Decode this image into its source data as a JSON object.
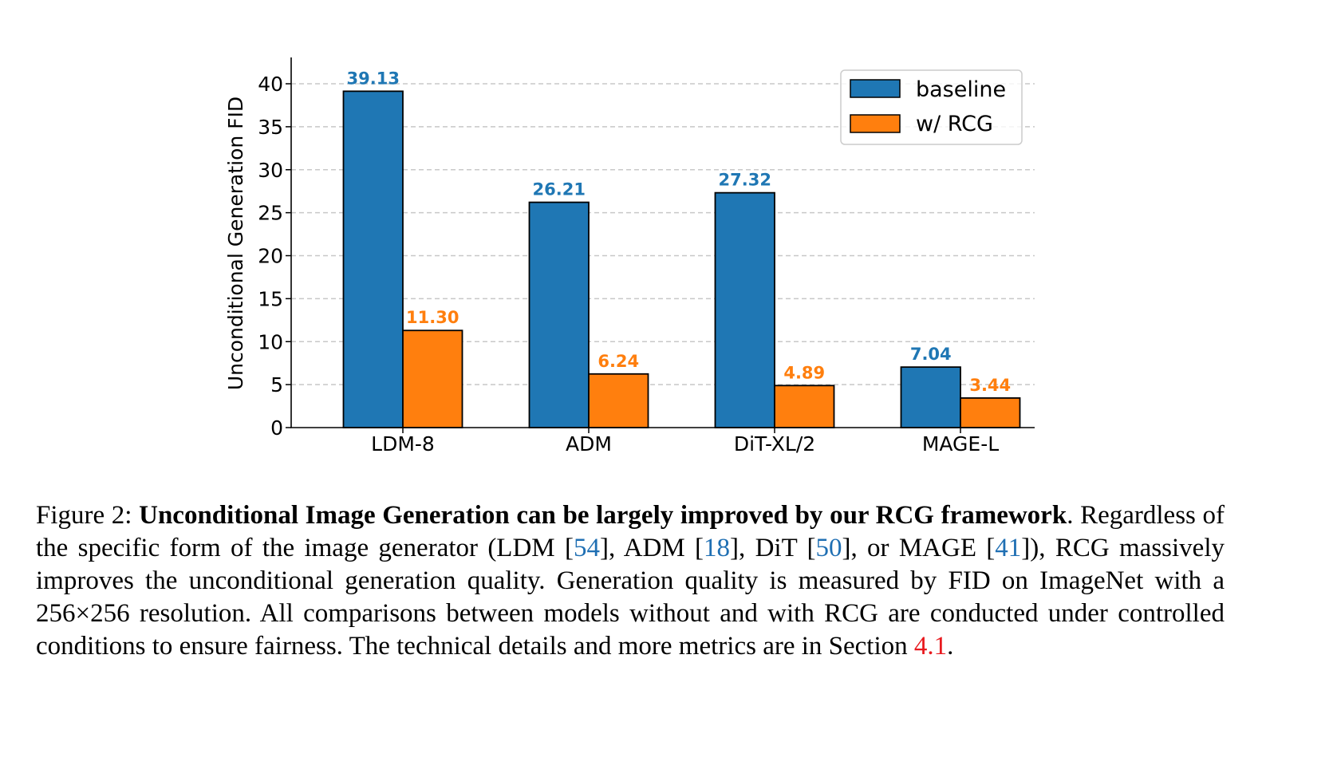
{
  "chart_data": {
    "type": "bar",
    "title": "",
    "xlabel": "",
    "ylabel": "Unconditional Generation FID",
    "ylim": [
      0,
      43
    ],
    "yticks": [
      0,
      5,
      10,
      15,
      20,
      25,
      30,
      35,
      40
    ],
    "grid": true,
    "grid_style": "dashed-horizontal",
    "legend_position": "top-right",
    "categories": [
      "LDM-8",
      "ADM",
      "DiT-XL/2",
      "MAGE-L"
    ],
    "series": [
      {
        "name": "baseline",
        "color": "#1f77b4",
        "values": [
          39.13,
          26.21,
          27.32,
          7.04
        ],
        "labels": [
          "39.13",
          "26.21",
          "27.32",
          "7.04"
        ]
      },
      {
        "name": "w/ RCG",
        "color": "#ff7f0e",
        "values": [
          11.3,
          6.24,
          4.89,
          3.44
        ],
        "labels": [
          "11.30",
          "6.24",
          "4.89",
          "3.44"
        ]
      }
    ]
  },
  "caption": {
    "label": "Figure 2:",
    "bold_title": "Unconditional Image Generation can be largely improved by our RCG framework",
    "title_end": ".",
    "seg1": "Regardless of the specific form of the image generator (LDM [",
    "cite1": "54",
    "seg2": "], ADM [",
    "cite2": "18",
    "seg3": "], DiT [",
    "cite3": "50",
    "seg4": "], or MAGE [",
    "cite4": "41",
    "seg5": "]), RCG massively improves the unconditional generation quality.  Generation quality is measured by FID on ImageNet with a 256×256 resolution.  All comparisons between models without and with RCG are conducted under controlled conditions to ensure fairness.  The technical details and more metrics are in Section ",
    "ref": "4.1",
    "seg6": "."
  }
}
